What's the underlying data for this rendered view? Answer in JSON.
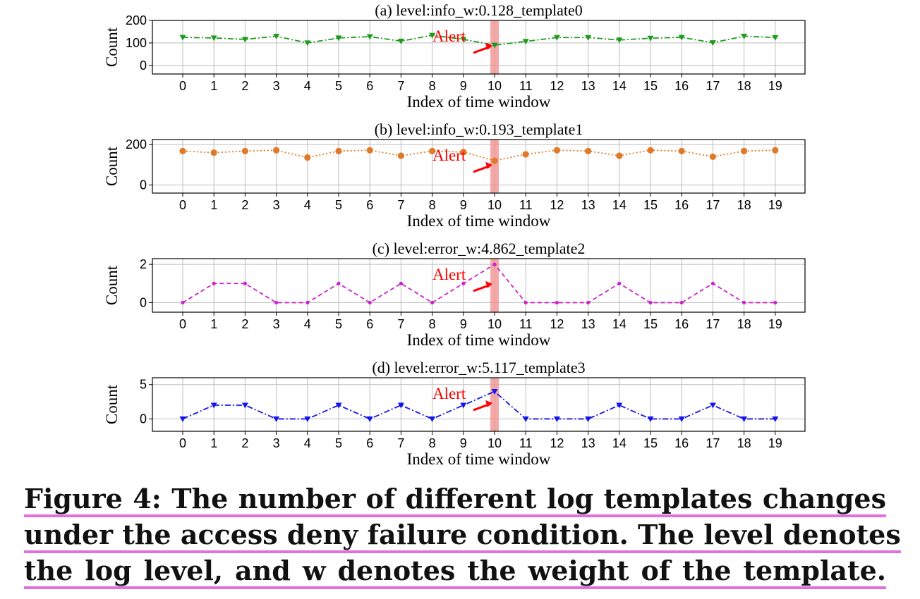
{
  "chart_data": [
    {
      "type": "line",
      "title": "(a) level:info_w:0.128_template0",
      "xlabel": "Index of time window",
      "ylabel": "Count",
      "x": [
        0,
        1,
        2,
        3,
        4,
        5,
        6,
        7,
        8,
        9,
        10,
        11,
        12,
        13,
        14,
        15,
        16,
        17,
        18,
        19
      ],
      "yticks": [
        0,
        100,
        200
      ],
      "ylim": [
        -38,
        200
      ],
      "grid": true,
      "color": "#1e9b1e",
      "line_style": "dashdot",
      "marker": "triangle-down",
      "series": [
        {
          "values": [
            125,
            122,
            116,
            130,
            100,
            122,
            128,
            108,
            134,
            116,
            90,
            107,
            124,
            124,
            113,
            121,
            125,
            101,
            130,
            124
          ]
        }
      ],
      "annotation": {
        "text": "Alert",
        "x": 10
      }
    },
    {
      "type": "line",
      "title": "(b) level:info_w:0.193_template1",
      "xlabel": "Index of time window",
      "ylabel": "Count",
      "x": [
        0,
        1,
        2,
        3,
        4,
        5,
        6,
        7,
        8,
        9,
        10,
        11,
        12,
        13,
        14,
        15,
        16,
        17,
        18,
        19
      ],
      "yticks": [
        0,
        200
      ],
      "ylim": [
        -40,
        225
      ],
      "grid": true,
      "color": "#e07a28",
      "line_style": "dotted",
      "marker": "circle",
      "series": [
        {
          "values": [
            168,
            160,
            168,
            172,
            136,
            168,
            172,
            145,
            168,
            163,
            120,
            152,
            172,
            168,
            145,
            172,
            168,
            140,
            168,
            172
          ]
        }
      ],
      "annotation": {
        "text": "Alert",
        "x": 10
      }
    },
    {
      "type": "line",
      "title": "(c) level:error_w:4.862_template2",
      "xlabel": "Index of time window",
      "ylabel": "Count",
      "x": [
        0,
        1,
        2,
        3,
        4,
        5,
        6,
        7,
        8,
        9,
        10,
        11,
        12,
        13,
        14,
        15,
        16,
        17,
        18,
        19
      ],
      "yticks": [
        0,
        2
      ],
      "ylim": [
        -0.5,
        2.3
      ],
      "grid": true,
      "color": "#cc22cc",
      "line_style": "dashed",
      "marker": "dot",
      "series": [
        {
          "values": [
            0,
            1,
            1,
            0,
            0,
            1,
            0,
            1,
            0,
            1,
            2,
            0,
            0,
            0,
            1,
            0,
            0,
            1,
            0,
            0
          ]
        }
      ],
      "annotation": {
        "text": "Alert",
        "x": 10
      }
    },
    {
      "type": "line",
      "title": "(d) level:error_w:5.117_template3",
      "xlabel": "Index of time window",
      "ylabel": "Count",
      "x": [
        0,
        1,
        2,
        3,
        4,
        5,
        6,
        7,
        8,
        9,
        10,
        11,
        12,
        13,
        14,
        15,
        16,
        17,
        18,
        19
      ],
      "yticks": [
        0,
        5
      ],
      "ylim": [
        -1.8,
        6.0
      ],
      "grid": true,
      "color": "#1414ee",
      "line_style": "dashdot",
      "marker": "triangle-down",
      "series": [
        {
          "values": [
            0,
            2,
            2,
            0,
            0,
            2,
            0,
            2,
            0,
            2,
            4,
            0,
            0,
            0,
            2,
            0,
            0,
            2,
            0,
            0
          ]
        }
      ],
      "annotation": {
        "text": "Alert",
        "x": 10
      }
    }
  ],
  "caption": {
    "lines": [
      "Figure 4: The number of different log templates changes",
      "under the access deny failure condition. The level denotes",
      "the log level, and w denotes the weight of the template."
    ]
  }
}
